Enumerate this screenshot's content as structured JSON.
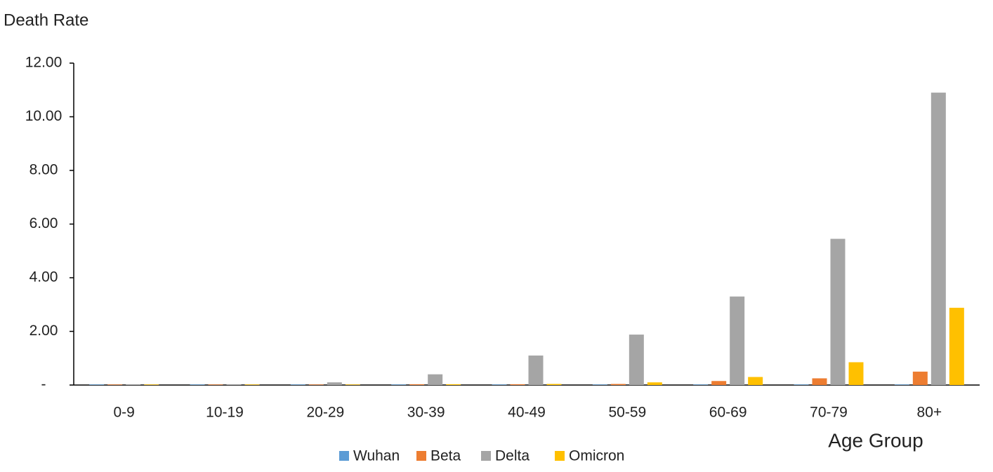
{
  "chart_data": {
    "type": "bar",
    "y_label": "Death Rate",
    "x_label": "Age Group",
    "categories": [
      "0-9",
      "10-19",
      "20-29",
      "30-39",
      "40-49",
      "50-59",
      "60-69",
      "70-79",
      "80+"
    ],
    "series": [
      {
        "name": "Wuhan",
        "color": "#5b9bd5",
        "values": [
          0.02,
          0.02,
          0.02,
          0.02,
          0.02,
          0.02,
          0.02,
          0.02,
          0.02
        ]
      },
      {
        "name": "Beta",
        "color": "#ed7d31",
        "values": [
          0.02,
          0.02,
          0.02,
          0.03,
          0.03,
          0.04,
          0.15,
          0.25,
          0.5
        ]
      },
      {
        "name": "Delta",
        "color": "#a5a5a5",
        "values": [
          0.02,
          0.02,
          0.1,
          0.4,
          1.1,
          1.88,
          3.3,
          5.45,
          10.9
        ]
      },
      {
        "name": "Omicron",
        "color": "#ffc000",
        "values": [
          0.02,
          0.02,
          0.02,
          0.03,
          0.04,
          0.1,
          0.3,
          0.85,
          2.88
        ]
      }
    ],
    "ylim": [
      0,
      12
    ],
    "yticks": [
      {
        "value": 0,
        "label": "-"
      },
      {
        "value": 2,
        "label": "2.00"
      },
      {
        "value": 4,
        "label": "4.00"
      },
      {
        "value": 6,
        "label": "6.00"
      },
      {
        "value": 8,
        "label": "8.00"
      },
      {
        "value": 10,
        "label": "10.00"
      },
      {
        "value": 12,
        "label": "12.00"
      }
    ],
    "grid": false,
    "legend": "bottom"
  }
}
